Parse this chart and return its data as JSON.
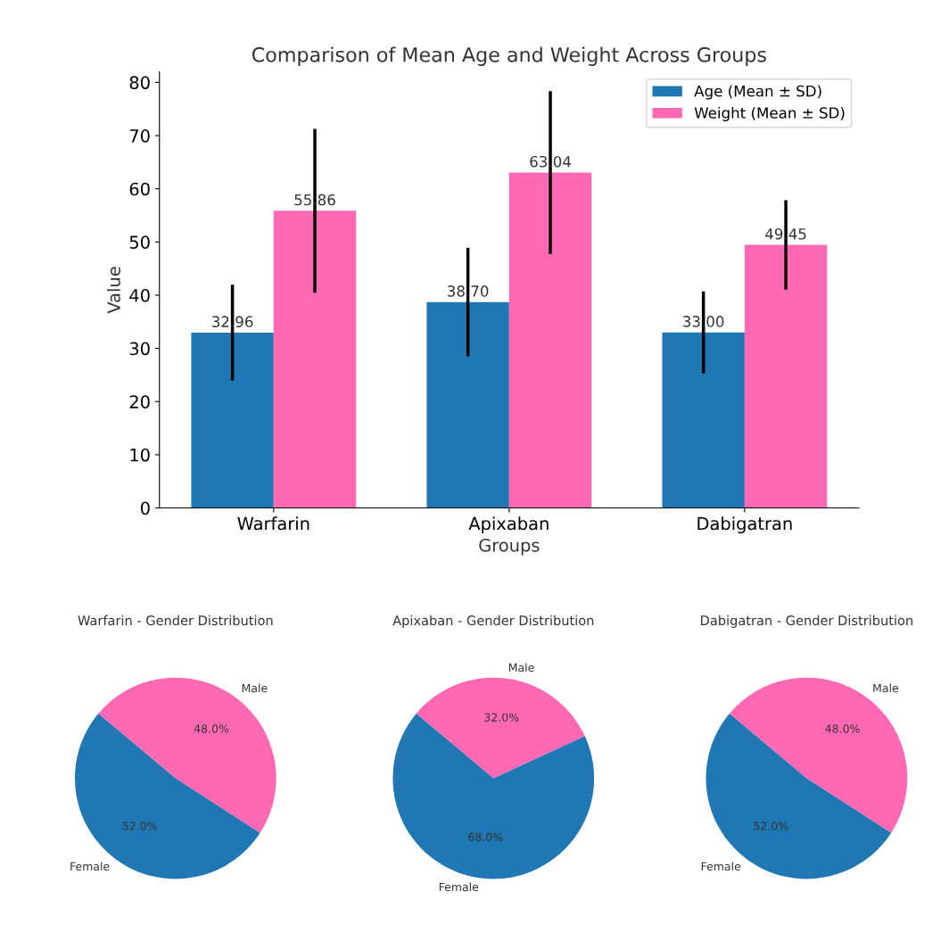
{
  "chart_data": [
    {
      "type": "bar",
      "title": "Comparison of Mean Age and Weight Across Groups",
      "xlabel": "Groups",
      "ylabel": "Value",
      "categories": [
        "Warfarin",
        "Apixaban",
        "Dabigatran"
      ],
      "series": [
        {
          "name": "Age (Mean ± SD)",
          "color": "#1f77b4",
          "values": [
            32.96,
            38.7,
            33.0
          ],
          "errors": [
            9.0,
            10.2,
            7.7
          ],
          "value_labels": [
            "32.96",
            "38.70",
            "33.00"
          ]
        },
        {
          "name": "Weight (Mean ± SD)",
          "color": "#ff69b4",
          "values": [
            55.86,
            63.04,
            49.45
          ],
          "errors": [
            15.4,
            15.3,
            8.4
          ],
          "value_labels": [
            "55.86",
            "63.04",
            "49.45"
          ]
        }
      ],
      "ylim": [
        0,
        82
      ],
      "yticks": [
        0,
        10,
        20,
        30,
        40,
        50,
        60,
        70,
        80
      ],
      "grid": false,
      "legend": "top right"
    },
    {
      "type": "pie",
      "title": "Warfarin - Gender Distribution",
      "categories": [
        "Female",
        "Male"
      ],
      "values": [
        52.0,
        48.0
      ],
      "colors": [
        "#1f77b4",
        "#ff69b4"
      ],
      "value_labels": [
        "52.0%",
        "48.0%"
      ]
    },
    {
      "type": "pie",
      "title": "Apixaban - Gender Distribution",
      "categories": [
        "Female",
        "Male"
      ],
      "values": [
        68.0,
        32.0
      ],
      "colors": [
        "#1f77b4",
        "#ff69b4"
      ],
      "value_labels": [
        "68.0%",
        "32.0%"
      ]
    },
    {
      "type": "pie",
      "title": "Dabigatran - Gender Distribution",
      "categories": [
        "Female",
        "Male"
      ],
      "values": [
        52.0,
        48.0
      ],
      "colors": [
        "#1f77b4",
        "#ff69b4"
      ],
      "value_labels": [
        "52.0%",
        "48.0%"
      ]
    }
  ]
}
